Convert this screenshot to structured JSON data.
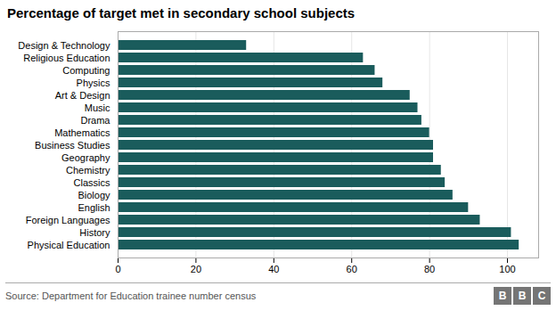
{
  "chart_data": {
    "type": "bar",
    "orientation": "horizontal",
    "title": "Percentage of target met in secondary school subjects",
    "categories": [
      "Design & Technology",
      "Religious Education",
      "Computing",
      "Physics",
      "Art & Design",
      "Music",
      "Drama",
      "Mathematics",
      "Business Studies",
      "Geography",
      "Chemistry",
      "Classics",
      "Biology",
      "English",
      "Foreign Languages",
      "History",
      "Physical Education"
    ],
    "values": [
      33,
      63,
      66,
      68,
      75,
      77,
      78,
      80,
      81,
      81,
      83,
      84,
      86,
      90,
      93,
      101,
      103
    ],
    "color": "#1a5c5c",
    "xlim": [
      0,
      108
    ],
    "xticks": [
      0,
      20,
      40,
      60,
      80,
      100
    ],
    "grid": true,
    "source": "Source: Department for Education trainee number census",
    "logo": "BBC"
  }
}
